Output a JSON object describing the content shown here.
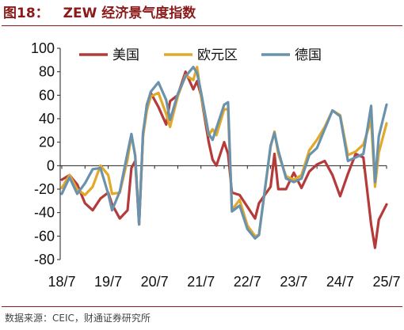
{
  "header": {
    "figure_number": "图18：",
    "title": "ZEW 经济景气度指数"
  },
  "footer": {
    "source": "数据来源：CEIC，财通证券研究所"
  },
  "chart_data": {
    "type": "line",
    "title": "ZEW 经济景气度指数",
    "xlabel": "",
    "ylabel": "",
    "ylim": [
      -80,
      100
    ],
    "yticks": [
      -80,
      -60,
      -40,
      -20,
      0,
      20,
      40,
      60,
      80,
      100
    ],
    "xlim_months": [
      "2018-07",
      "2025-07"
    ],
    "xticks": [
      {
        "label": "18/7",
        "date": "2018-07"
      },
      {
        "label": "19/7",
        "date": "2019-07"
      },
      {
        "label": "20/7",
        "date": "2020-07"
      },
      {
        "label": "21/7",
        "date": "2021-07"
      },
      {
        "label": "22/7",
        "date": "2022-07"
      },
      {
        "label": "23/7",
        "date": "2023-07"
      },
      {
        "label": "24/7",
        "date": "2024-07"
      },
      {
        "label": "25/7",
        "date": "2025-07"
      }
    ],
    "grid": false,
    "legend": "top",
    "series": [
      {
        "name": "美国",
        "color": "#B53A3A",
        "points": [
          [
            "2018-07",
            -12
          ],
          [
            "2018-09",
            -8
          ],
          [
            "2018-11",
            -16
          ],
          [
            "2019-01",
            -32
          ],
          [
            "2019-03",
            -38
          ],
          [
            "2019-05",
            -28
          ],
          [
            "2019-07",
            -23
          ],
          [
            "2019-08",
            -33
          ],
          [
            "2019-10",
            -45
          ],
          [
            "2019-12",
            -38
          ],
          [
            "2020-01",
            -2
          ],
          [
            "2020-02",
            4
          ],
          [
            "2020-03",
            -50
          ],
          [
            "2020-04",
            25
          ],
          [
            "2020-05",
            52
          ],
          [
            "2020-06",
            62
          ],
          [
            "2020-08",
            50
          ],
          [
            "2020-10",
            35
          ],
          [
            "2020-11",
            55
          ],
          [
            "2021-01",
            60
          ],
          [
            "2021-03",
            80
          ],
          [
            "2021-05",
            65
          ],
          [
            "2021-06",
            72
          ],
          [
            "2021-07",
            60
          ],
          [
            "2021-09",
            20
          ],
          [
            "2021-10",
            5
          ],
          [
            "2021-11",
            0
          ],
          [
            "2022-01",
            20
          ],
          [
            "2022-02",
            10
          ],
          [
            "2022-03",
            -23
          ],
          [
            "2022-05",
            -25
          ],
          [
            "2022-07",
            -35
          ],
          [
            "2022-09",
            -45
          ],
          [
            "2022-10",
            -32
          ],
          [
            "2023-01",
            -18
          ],
          [
            "2023-02",
            10
          ],
          [
            "2023-03",
            -20
          ],
          [
            "2023-05",
            -20
          ],
          [
            "2023-07",
            -6
          ],
          [
            "2023-09",
            -19
          ],
          [
            "2023-11",
            -5
          ],
          [
            "2024-01",
            1
          ],
          [
            "2024-03",
            4
          ],
          [
            "2024-05",
            -8
          ],
          [
            "2024-07",
            -26
          ],
          [
            "2024-09",
            -7
          ],
          [
            "2024-11",
            10
          ],
          [
            "2025-01",
            7
          ],
          [
            "2025-03",
            -50
          ],
          [
            "2025-04",
            -70
          ],
          [
            "2025-05",
            -46
          ],
          [
            "2025-07",
            -33
          ]
        ]
      },
      {
        "name": "欧元区",
        "color": "#E2A82A",
        "points": [
          [
            "2018-07",
            -19
          ],
          [
            "2018-09",
            -8
          ],
          [
            "2018-11",
            -20
          ],
          [
            "2019-01",
            -25
          ],
          [
            "2019-03",
            -18
          ],
          [
            "2019-05",
            0
          ],
          [
            "2019-07",
            -8
          ],
          [
            "2019-08",
            -24
          ],
          [
            "2019-10",
            -23
          ],
          [
            "2019-12",
            5
          ],
          [
            "2020-01",
            26
          ],
          [
            "2020-02",
            9
          ],
          [
            "2020-03",
            -49
          ],
          [
            "2020-04",
            25
          ],
          [
            "2020-05",
            47
          ],
          [
            "2020-06",
            59
          ],
          [
            "2020-08",
            62
          ],
          [
            "2020-10",
            44
          ],
          [
            "2020-11",
            33
          ],
          [
            "2021-01",
            59
          ],
          [
            "2021-03",
            77
          ],
          [
            "2021-05",
            73
          ],
          [
            "2021-06",
            84
          ],
          [
            "2021-07",
            60
          ],
          [
            "2021-09",
            26
          ],
          [
            "2021-10",
            31
          ],
          [
            "2021-11",
            26
          ],
          [
            "2022-01",
            48
          ],
          [
            "2022-02",
            48
          ],
          [
            "2022-03",
            -38
          ],
          [
            "2022-05",
            -29
          ],
          [
            "2022-07",
            -51
          ],
          [
            "2022-09",
            -60
          ],
          [
            "2022-10",
            -59
          ],
          [
            "2023-01",
            16
          ],
          [
            "2023-02",
            29
          ],
          [
            "2023-03",
            10
          ],
          [
            "2023-05",
            -9
          ],
          [
            "2023-07",
            -12
          ],
          [
            "2023-09",
            -8
          ],
          [
            "2023-11",
            13
          ],
          [
            "2024-01",
            22
          ],
          [
            "2024-03",
            33
          ],
          [
            "2024-05",
            47
          ],
          [
            "2024-07",
            43
          ],
          [
            "2024-09",
            9
          ],
          [
            "2024-11",
            12
          ],
          [
            "2025-01",
            18
          ],
          [
            "2025-03",
            39
          ],
          [
            "2025-04",
            -18
          ],
          [
            "2025-05",
            11
          ],
          [
            "2025-07",
            36
          ]
        ]
      },
      {
        "name": "德国",
        "color": "#6A92AC",
        "points": [
          [
            "2018-07",
            -24
          ],
          [
            "2018-09",
            -10
          ],
          [
            "2018-11",
            -24
          ],
          [
            "2019-01",
            -15
          ],
          [
            "2019-03",
            -3
          ],
          [
            "2019-05",
            -2
          ],
          [
            "2019-07",
            -24
          ],
          [
            "2019-08",
            -38
          ],
          [
            "2019-10",
            -22
          ],
          [
            "2019-12",
            11
          ],
          [
            "2020-01",
            27
          ],
          [
            "2020-02",
            8
          ],
          [
            "2020-03",
            -50
          ],
          [
            "2020-04",
            28
          ],
          [
            "2020-05",
            51
          ],
          [
            "2020-06",
            63
          ],
          [
            "2020-08",
            71
          ],
          [
            "2020-10",
            56
          ],
          [
            "2020-11",
            39
          ],
          [
            "2021-01",
            61
          ],
          [
            "2021-03",
            76
          ],
          [
            "2021-05",
            84
          ],
          [
            "2021-06",
            79
          ],
          [
            "2021-07",
            63
          ],
          [
            "2021-09",
            27
          ],
          [
            "2021-10",
            22
          ],
          [
            "2021-11",
            32
          ],
          [
            "2022-01",
            52
          ],
          [
            "2022-02",
            54
          ],
          [
            "2022-03",
            -39
          ],
          [
            "2022-05",
            -34
          ],
          [
            "2022-07",
            -54
          ],
          [
            "2022-09",
            -62
          ],
          [
            "2022-10",
            -59
          ],
          [
            "2023-01",
            17
          ],
          [
            "2023-02",
            28
          ],
          [
            "2023-03",
            13
          ],
          [
            "2023-05",
            -11
          ],
          [
            "2023-07",
            -14
          ],
          [
            "2023-09",
            -11
          ],
          [
            "2023-11",
            9
          ],
          [
            "2024-01",
            15
          ],
          [
            "2024-03",
            31
          ],
          [
            "2024-05",
            47
          ],
          [
            "2024-07",
            42
          ],
          [
            "2024-09",
            4
          ],
          [
            "2024-11",
            7
          ],
          [
            "2025-01",
            10
          ],
          [
            "2025-03",
            51
          ],
          [
            "2025-04",
            -14
          ],
          [
            "2025-05",
            25
          ],
          [
            "2025-07",
            52
          ]
        ]
      }
    ]
  }
}
